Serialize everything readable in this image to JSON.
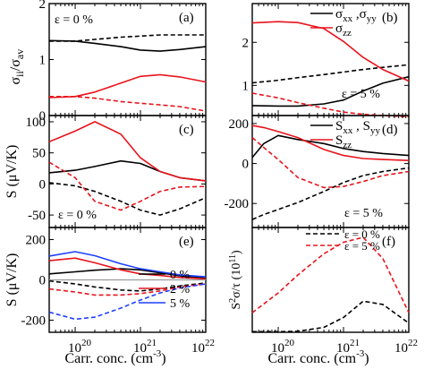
{
  "colors": {
    "black": "#000000",
    "red": "#e8141c",
    "blue": "#1f3fff",
    "gray": "#9a9a9a"
  },
  "xaxis": {
    "label": "Carr. conc. (cm",
    "label_sup": "-3",
    "label_close": ")",
    "ticks": [
      "10",
      "10",
      "10"
    ],
    "tick_sups": [
      "20",
      "21",
      "22"
    ]
  },
  "chart_data": [
    {
      "panel": "(a)",
      "type": "line",
      "log_x": true,
      "ylabel": "σ",
      "ylabel_sub": "ii",
      "ylabel_tail": "/σ",
      "ylabel_sub2": "av",
      "ylim": [
        0,
        2
      ],
      "yticks": [
        "0",
        "1",
        "2"
      ],
      "annotation": "ε = 0 %",
      "x": [
        4e+19,
        1e+20,
        2e+20,
        5e+20,
        1e+21,
        2e+21,
        4e+21,
        1e+22
      ],
      "series": [
        {
          "color": "black",
          "dash": false,
          "values": [
            1.34,
            1.33,
            1.29,
            1.23,
            1.17,
            1.15,
            1.18,
            1.23
          ]
        },
        {
          "color": "black",
          "dash": true,
          "values": [
            1.33,
            1.33,
            1.36,
            1.4,
            1.42,
            1.44,
            1.44,
            1.44
          ]
        },
        {
          "color": "red",
          "dash": false,
          "values": [
            0.32,
            0.34,
            0.42,
            0.58,
            0.7,
            0.73,
            0.69,
            0.6
          ]
        },
        {
          "color": "red",
          "dash": true,
          "values": [
            0.34,
            0.34,
            0.31,
            0.25,
            0.22,
            0.19,
            0.16,
            0.08
          ]
        }
      ]
    },
    {
      "panel": "(b)",
      "type": "line",
      "log_x": true,
      "ylim": [
        0.3,
        2.9
      ],
      "yticks": [
        "1",
        "2"
      ],
      "ytick_values": [
        1,
        2
      ],
      "annotation": "ε = 5 %",
      "legend": [
        {
          "label": "σ",
          "sub": "xx",
          "mid": " ,σ",
          "sub2": "yy",
          "color": "black"
        },
        {
          "label": "σ",
          "sub": "zz",
          "color": "red"
        }
      ],
      "x": [
        4e+19,
        1e+20,
        2e+20,
        5e+20,
        1e+21,
        2e+21,
        4e+21,
        1e+22
      ],
      "series": [
        {
          "color": "black",
          "dash": false,
          "values": [
            0.53,
            0.52,
            0.52,
            0.57,
            0.66,
            0.87,
            1.05,
            1.2
          ]
        },
        {
          "color": "black",
          "dash": true,
          "values": [
            1.06,
            1.12,
            1.18,
            1.25,
            1.31,
            1.37,
            1.42,
            1.48
          ]
        },
        {
          "color": "red",
          "dash": false,
          "values": [
            2.45,
            2.48,
            2.46,
            2.32,
            2.02,
            1.65,
            1.37,
            1.1
          ]
        },
        {
          "color": "red",
          "dash": true,
          "values": [
            0.82,
            0.71,
            0.6,
            0.47,
            0.38,
            0.33,
            0.3,
            0.27
          ]
        }
      ]
    },
    {
      "panel": "(c)",
      "type": "line",
      "log_x": true,
      "ylabel": "S (μV/K)",
      "ylim": [
        -70,
        110
      ],
      "yticks": [
        "-50",
        "0",
        "50",
        "100"
      ],
      "ytick_values": [
        -50,
        0,
        50,
        100
      ],
      "annotation": "ε = 0 %",
      "x": [
        4e+19,
        1e+20,
        2e+20,
        5e+20,
        1e+21,
        2e+21,
        4e+21,
        1e+22
      ],
      "series": [
        {
          "color": "black",
          "dash": false,
          "values": [
            18,
            22,
            28,
            37,
            33,
            20,
            10,
            5
          ]
        },
        {
          "color": "black",
          "dash": true,
          "values": [
            2,
            -3,
            -12,
            -28,
            -42,
            -50,
            -40,
            -22
          ]
        },
        {
          "color": "red",
          "dash": false,
          "values": [
            68,
            85,
            100,
            80,
            42,
            20,
            10,
            5
          ]
        },
        {
          "color": "red",
          "dash": true,
          "values": [
            35,
            10,
            -28,
            -42,
            -28,
            -12,
            -5,
            -4
          ]
        }
      ]
    },
    {
      "panel": "(d)",
      "type": "line",
      "log_x": true,
      "ylim": [
        -320,
        240
      ],
      "yticks": [
        "-200",
        "0",
        "200"
      ],
      "ytick_values": [
        -200,
        0,
        200
      ],
      "annotation": "ε = 5 %",
      "legend": [
        {
          "label": "S",
          "sub": "xx",
          "mid": " , S",
          "sub2": "yy",
          "color": "black"
        },
        {
          "label": "S",
          "sub": "zz",
          "color": "red"
        }
      ],
      "x": [
        4e+19,
        6e+19,
        1e+20,
        2e+20,
        5e+20,
        1e+21,
        2e+21,
        4e+21,
        1e+22
      ],
      "series": [
        {
          "color": "black",
          "dash": false,
          "values": [
            30,
            100,
            140,
            120,
            100,
            75,
            60,
            50,
            40
          ]
        },
        {
          "color": "black",
          "dash": true,
          "values": [
            -280,
            -255,
            -230,
            -195,
            -140,
            -95,
            -60,
            -40,
            -22
          ]
        },
        {
          "color": "red",
          "dash": false,
          "values": [
            190,
            180,
            160,
            130,
            70,
            40,
            25,
            20,
            15
          ]
        },
        {
          "color": "red",
          "dash": true,
          "values": [
            130,
            80,
            20,
            -70,
            -120,
            -115,
            -90,
            -60,
            -40
          ]
        }
      ]
    },
    {
      "panel": "(e)",
      "type": "line",
      "log_x": true,
      "ylabel": "S (μV/K)",
      "ylim": [
        -260,
        260
      ],
      "yticks": [
        "-200",
        "0",
        "200"
      ],
      "ytick_values": [
        -200,
        0,
        200
      ],
      "legend": [
        {
          "label": "0 %",
          "color": "black"
        },
        {
          "label": "2 %",
          "color": "red"
        },
        {
          "label": "5 %",
          "color": "blue"
        }
      ],
      "x": [
        4e+19,
        1e+20,
        2e+20,
        5e+20,
        1e+21,
        2e+21,
        4e+21,
        1e+22
      ],
      "series": [
        {
          "color": "black",
          "dash": false,
          "values": [
            30,
            40,
            48,
            55,
            50,
            35,
            20,
            8
          ]
        },
        {
          "color": "black",
          "dash": true,
          "values": [
            -5,
            -20,
            -35,
            -50,
            -55,
            -45,
            -30,
            -15
          ]
        },
        {
          "color": "red",
          "dash": false,
          "values": [
            95,
            108,
            85,
            50,
            30,
            22,
            12,
            5
          ]
        },
        {
          "color": "red",
          "dash": true,
          "values": [
            -45,
            -60,
            -75,
            -75,
            -68,
            -55,
            -35,
            -20
          ]
        },
        {
          "color": "blue",
          "dash": false,
          "values": [
            118,
            140,
            120,
            80,
            55,
            40,
            25,
            15
          ]
        },
        {
          "color": "blue",
          "dash": true,
          "values": [
            -160,
            -195,
            -185,
            -140,
            -100,
            -65,
            -40,
            -20
          ]
        },
        {
          "color": "gray",
          "dash": false,
          "values": [
            0,
            0,
            0,
            0,
            0,
            0,
            0,
            0
          ]
        }
      ]
    },
    {
      "panel": "(f)",
      "type": "line",
      "log_x": true,
      "ylabel": "S",
      "ylabel_sup": "2",
      "ylabel_tail": "σ/τ (10",
      "ylabel_sup2": "11",
      "ylabel_end": ")",
      "ylim": [
        0,
        3.2
      ],
      "legend": [
        {
          "label": "ε = 0 %",
          "color": "black"
        },
        {
          "label": "ε = 5 %",
          "color": "red"
        }
      ],
      "x": [
        4e+19,
        1e+20,
        2e+20,
        5e+20,
        1e+21,
        2e+21,
        4e+21,
        1e+22
      ],
      "series": [
        {
          "color": "black",
          "dash": true,
          "values": [
            0.02,
            0.02,
            0.03,
            0.15,
            0.45,
            0.95,
            0.85,
            0.28
          ]
        },
        {
          "color": "red",
          "dash": true,
          "values": [
            0.6,
            1.2,
            1.75,
            2.4,
            2.75,
            2.9,
            2.25,
            0.6
          ]
        }
      ]
    }
  ]
}
